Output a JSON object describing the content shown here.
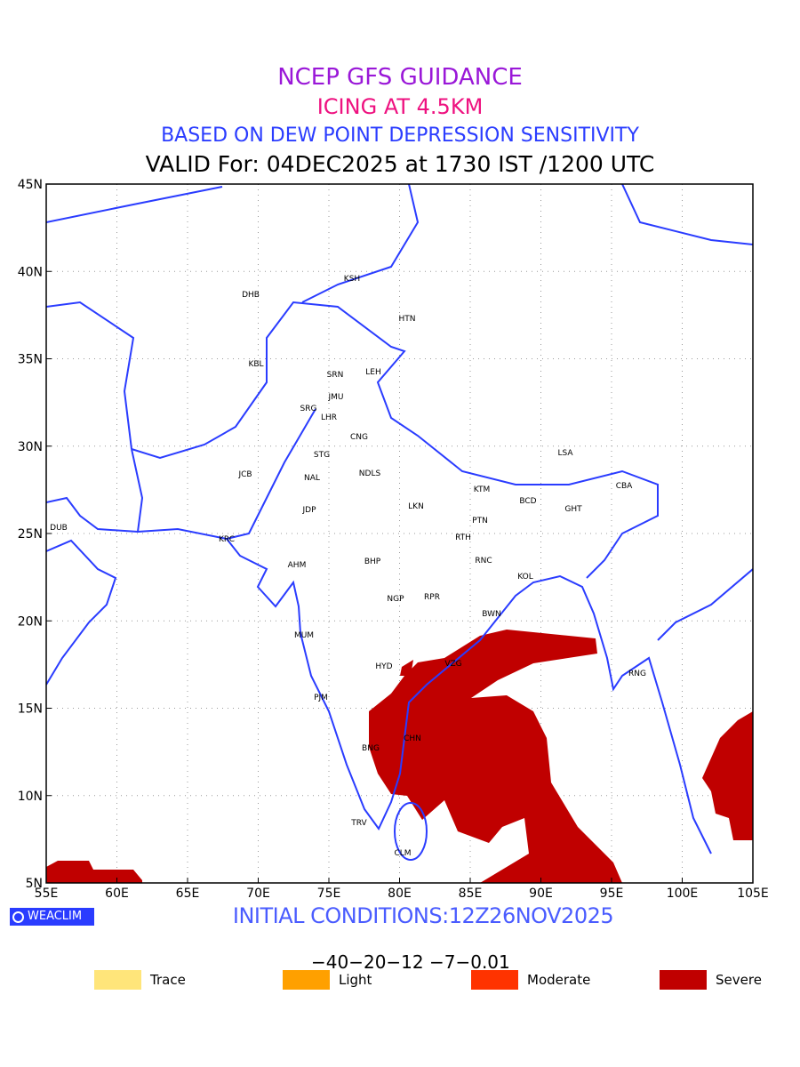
{
  "header": {
    "title": "NCEP GFS GUIDANCE",
    "subtitle": "ICING AT 4.5KM",
    "method": "BASED ON DEW POINT DEPRESSION SENSITIVITY",
    "valid": "VALID For: 04DEC2025 at 1730 IST /1200 UTC"
  },
  "map": {
    "lat_ticks": [
      "45N",
      "40N",
      "35N",
      "30N",
      "25N",
      "20N",
      "15N",
      "10N",
      "5N"
    ],
    "lon_ticks": [
      "55E",
      "60E",
      "65E",
      "70E",
      "75E",
      "80E",
      "85E",
      "90E",
      "95E",
      "100E",
      "105E"
    ],
    "extent": {
      "lon": [
        55,
        105
      ],
      "lat": [
        5,
        45
      ]
    },
    "stations": [
      "KSH",
      "DHB",
      "HTN",
      "KBL",
      "SRN",
      "LEH",
      "JMU",
      "SRG",
      "LHR",
      "CNG",
      "STG",
      "NDLS",
      "JCB",
      "NAL",
      "LSA",
      "CBA",
      "KTM",
      "BCD",
      "GHT",
      "JDP",
      "LKN",
      "PTN",
      "DUB",
      "KRC",
      "RTH",
      "RNC",
      "AHM",
      "BHP",
      "KOL",
      "NGP",
      "RPR",
      "BWN",
      "MUM",
      "HYD",
      "VZG",
      "RNG",
      "PJM",
      "CHN",
      "BNG",
      "TRV",
      "CLM"
    ],
    "coast_color": "#2a3cff",
    "severe_color": "#c00000"
  },
  "footer": {
    "logo": "WEACLIM",
    "initial_conditions": "INITIAL CONDITIONS:12Z26NOV2025",
    "colorbar_labels": "−40−20−12 −7−0.01",
    "colorbar_colors": [
      "#ffe57a",
      "#ffa000",
      "#ff3300",
      "#c00000"
    ],
    "legend": [
      {
        "label": "Trace",
        "color": "#ffe57a"
      },
      {
        "label": "Light",
        "color": "#ffa000"
      },
      {
        "label": "Moderate",
        "color": "#ff3300"
      },
      {
        "label": "Severe",
        "color": "#c00000"
      }
    ]
  }
}
